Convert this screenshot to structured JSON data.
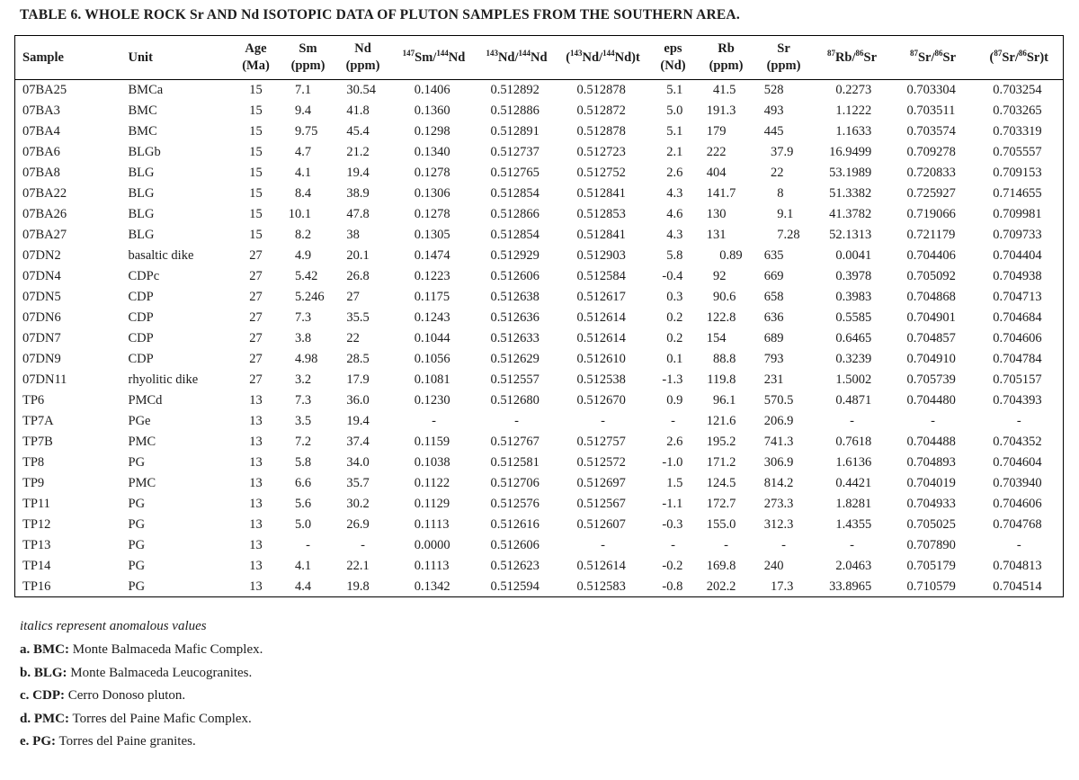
{
  "title": "TABLE 6. WHOLE ROCK Sr AND Nd ISOTOPIC DATA OF PLUTON SAMPLES FROM THE SOUTHERN AREA.",
  "colors": {
    "background": "#ffffff",
    "text": "#1c1c1c",
    "border": "#000000"
  },
  "table": {
    "columns": [
      {
        "id": "sample",
        "type": "text",
        "header": [
          [
            {
              "t": "Sample"
            }
          ]
        ]
      },
      {
        "id": "unit",
        "type": "text",
        "header": [
          [
            {
              "t": "Unit"
            }
          ]
        ]
      },
      {
        "id": "age_ma",
        "type": "center",
        "header": [
          [
            {
              "t": "Age"
            }
          ],
          [
            {
              "t": "(Ma)"
            }
          ]
        ]
      },
      {
        "id": "sm_ppm",
        "type": "num",
        "header": [
          [
            {
              "t": "Sm"
            }
          ],
          [
            {
              "t": "(ppm)"
            }
          ]
        ]
      },
      {
        "id": "nd_ppm",
        "type": "num",
        "header": [
          [
            {
              "t": "Nd"
            }
          ],
          [
            {
              "t": "(ppm)"
            }
          ]
        ]
      },
      {
        "id": "sm147_nd144",
        "type": "num",
        "header": [
          [
            {
              "t": "147",
              "s": true
            },
            {
              "t": "Sm/"
            },
            {
              "t": "144",
              "s": true
            },
            {
              "t": "Nd"
            }
          ]
        ]
      },
      {
        "id": "nd143_nd144",
        "type": "num",
        "header": [
          [
            {
              "t": "143",
              "s": true
            },
            {
              "t": "Nd/"
            },
            {
              "t": "144",
              "s": true
            },
            {
              "t": "Nd"
            }
          ]
        ]
      },
      {
        "id": "nd143_nd144_t",
        "type": "num",
        "header": [
          [
            {
              "t": "("
            },
            {
              "t": "143",
              "s": true
            },
            {
              "t": "Nd/"
            },
            {
              "t": "144",
              "s": true
            },
            {
              "t": "Nd)t"
            }
          ]
        ]
      },
      {
        "id": "eps_nd",
        "type": "num",
        "header": [
          [
            {
              "t": "eps"
            }
          ],
          [
            {
              "t": "(Nd)"
            }
          ]
        ]
      },
      {
        "id": "rb_ppm",
        "type": "num",
        "header": [
          [
            {
              "t": "Rb"
            }
          ],
          [
            {
              "t": "(ppm)"
            }
          ]
        ]
      },
      {
        "id": "sr_ppm",
        "type": "num",
        "header": [
          [
            {
              "t": "Sr"
            }
          ],
          [
            {
              "t": "(ppm)"
            }
          ]
        ]
      },
      {
        "id": "rb87_sr86",
        "type": "num",
        "header": [
          [
            {
              "t": "87",
              "s": true
            },
            {
              "t": "Rb/"
            },
            {
              "t": "86",
              "s": true
            },
            {
              "t": "Sr"
            }
          ]
        ]
      },
      {
        "id": "sr87_sr86",
        "type": "num",
        "header": [
          [
            {
              "t": "87",
              "s": true
            },
            {
              "t": "Sr/"
            },
            {
              "t": "86",
              "s": true
            },
            {
              "t": "Sr"
            }
          ]
        ]
      },
      {
        "id": "sr87_sr86_t",
        "type": "num",
        "header": [
          [
            {
              "t": "("
            },
            {
              "t": "87",
              "s": true
            },
            {
              "t": "Sr/"
            },
            {
              "t": "86",
              "s": true
            },
            {
              "t": "Sr)t"
            }
          ]
        ]
      }
    ],
    "rows": [
      [
        "07BA25",
        "BMCa",
        "15",
        "7.1",
        "30.54",
        "0.1406",
        "0.512892",
        "0.512878",
        "5.1",
        "41.5",
        "528",
        "0.2273",
        "0.703304",
        "0.703254"
      ],
      [
        "07BA3",
        "BMC",
        "15",
        "9.4",
        "41.8",
        "0.1360",
        "0.512886",
        "0.512872",
        "5.0",
        "191.3",
        "493",
        "1.1222",
        "0.703511",
        "0.703265"
      ],
      [
        "07BA4",
        "BMC",
        "15",
        "9.75",
        "45.4",
        "0.1298",
        "0.512891",
        "0.512878",
        "5.1",
        "179",
        "445",
        "1.1633",
        "0.703574",
        "0.703319"
      ],
      [
        "07BA6",
        "BLGb",
        "15",
        "4.7",
        "21.2",
        "0.1340",
        "0.512737",
        "0.512723",
        "2.1",
        "222",
        "37.9",
        "16.9499",
        "0.709278",
        "0.705557"
      ],
      [
        "07BA8",
        "BLG",
        "15",
        "4.1",
        "19.4",
        "0.1278",
        "0.512765",
        "0.512752",
        "2.6",
        "404",
        "22",
        "53.1989",
        "0.720833",
        "0.709153"
      ],
      [
        "07BA22",
        "BLG",
        "15",
        "8.4",
        "38.9",
        "0.1306",
        "0.512854",
        "0.512841",
        "4.3",
        "141.7",
        "8",
        "51.3382",
        "0.725927",
        "0.714655"
      ],
      [
        "07BA26",
        "BLG",
        "15",
        "10.1",
        "47.8",
        "0.1278",
        "0.512866",
        "0.512853",
        "4.6",
        "130",
        "9.1",
        "41.3782",
        "0.719066",
        "0.709981"
      ],
      [
        "07BA27",
        "BLG",
        "15",
        "8.2",
        "38",
        "0.1305",
        "0.512854",
        "0.512841",
        "4.3",
        "131",
        "7.28",
        "52.1313",
        "0.721179",
        "0.709733"
      ],
      [
        "07DN2",
        "basaltic dike",
        "27",
        "4.9",
        "20.1",
        "0.1474",
        "0.512929",
        "0.512903",
        "5.8",
        "0.89",
        "635",
        "0.0041",
        "0.704406",
        "0.704404"
      ],
      [
        "07DN4",
        "CDPc",
        "27",
        "5.42",
        "26.8",
        "0.1223",
        "0.512606",
        "0.512584",
        "-0.4",
        "92",
        "669",
        "0.3978",
        "0.705092",
        "0.704938"
      ],
      [
        "07DN5",
        "CDP",
        "27",
        "5.246",
        "27",
        "0.1175",
        "0.512638",
        "0.512617",
        "0.3",
        "90.6",
        "658",
        "0.3983",
        "0.704868",
        "0.704713"
      ],
      [
        "07DN6",
        "CDP",
        "27",
        "7.3",
        "35.5",
        "0.1243",
        "0.512636",
        "0.512614",
        "0.2",
        "122.8",
        "636",
        "0.5585",
        "0.704901",
        "0.704684"
      ],
      [
        "07DN7",
        "CDP",
        "27",
        "3.8",
        "22",
        "0.1044",
        "0.512633",
        "0.512614",
        "0.2",
        "154",
        "689",
        "0.6465",
        "0.704857",
        "0.704606"
      ],
      [
        "07DN9",
        "CDP",
        "27",
        "4.98",
        "28.5",
        "0.1056",
        "0.512629",
        "0.512610",
        "0.1",
        "88.8",
        "793",
        "0.3239",
        "0.704910",
        "0.704784"
      ],
      [
        "07DN11",
        "rhyolitic dike",
        "27",
        "3.2",
        "17.9",
        "0.1081",
        "0.512557",
        "0.512538",
        "-1.3",
        "119.8",
        "231",
        "1.5002",
        "0.705739",
        "0.705157"
      ],
      [
        "TP6",
        "PMCd",
        "13",
        "7.3",
        "36.0",
        "0.1230",
        "0.512680",
        "0.512670",
        "0.9",
        "96.1",
        "570.5",
        "0.4871",
        "0.704480",
        "0.704393"
      ],
      [
        "TP7A",
        "PGe",
        "13",
        "3.5",
        "19.4",
        "-",
        "-",
        "-",
        "-",
        "121.6",
        "206.9",
        "-",
        "-",
        "-"
      ],
      [
        "TP7B",
        "PMC",
        "13",
        "7.2",
        "37.4",
        "0.1159",
        "0.512767",
        "0.512757",
        "2.6",
        "195.2",
        "741.3",
        "0.7618",
        "0.704488",
        "0.704352"
      ],
      [
        "TP8",
        "PG",
        "13",
        "5.8",
        "34.0",
        "0.1038",
        "0.512581",
        "0.512572",
        "-1.0",
        "171.2",
        "306.9",
        "1.6136",
        "0.704893",
        "0.704604"
      ],
      [
        "TP9",
        "PMC",
        "13",
        "6.6",
        "35.7",
        "0.1122",
        "0.512706",
        "0.512697",
        "1.5",
        "124.5",
        "814.2",
        "0.4421",
        "0.704019",
        "0.703940"
      ],
      [
        "TP11",
        "PG",
        "13",
        "5.6",
        "30.2",
        "0.1129",
        "0.512576",
        "0.512567",
        "-1.1",
        "172.7",
        "273.3",
        "1.8281",
        "0.704933",
        "0.704606"
      ],
      [
        "TP12",
        "PG",
        "13",
        "5.0",
        "26.9",
        "0.1113",
        "0.512616",
        "0.512607",
        "-0.3",
        "155.0",
        "312.3",
        "1.4355",
        "0.705025",
        "0.704768"
      ],
      [
        "TP13",
        "PG",
        "13",
        "-",
        "-",
        "0.0000",
        "0.512606",
        "-",
        "-",
        "-",
        "-",
        "-",
        "0.707890",
        "-"
      ],
      [
        "TP14",
        "PG",
        "13",
        "4.1",
        "22.1",
        "0.1113",
        "0.512623",
        "0.512614",
        "-0.2",
        "169.8",
        "240",
        "2.0463",
        "0.705179",
        "0.704813"
      ],
      [
        "TP16",
        "PG",
        "13",
        "4.4",
        "19.8",
        "0.1342",
        "0.512594",
        "0.512583",
        "-0.8",
        "202.2",
        "17.3",
        "33.8965",
        "0.710579",
        "0.704514"
      ]
    ]
  },
  "footnotes": {
    "italic_note": "italics represent anomalous values",
    "items": [
      {
        "label": "a. BMC:",
        "text": " Monte Balmaceda Mafic Complex."
      },
      {
        "label": "b. BLG:",
        "text": " Monte Balmaceda Leucogranites."
      },
      {
        "label": "c. CDP:",
        "text": " Cerro Donoso pluton."
      },
      {
        "label": "d. PMC:",
        "text": " Torres del Paine Mafic Complex."
      },
      {
        "label": "e. PG:",
        "text": " Torres del Paine granites."
      }
    ]
  }
}
